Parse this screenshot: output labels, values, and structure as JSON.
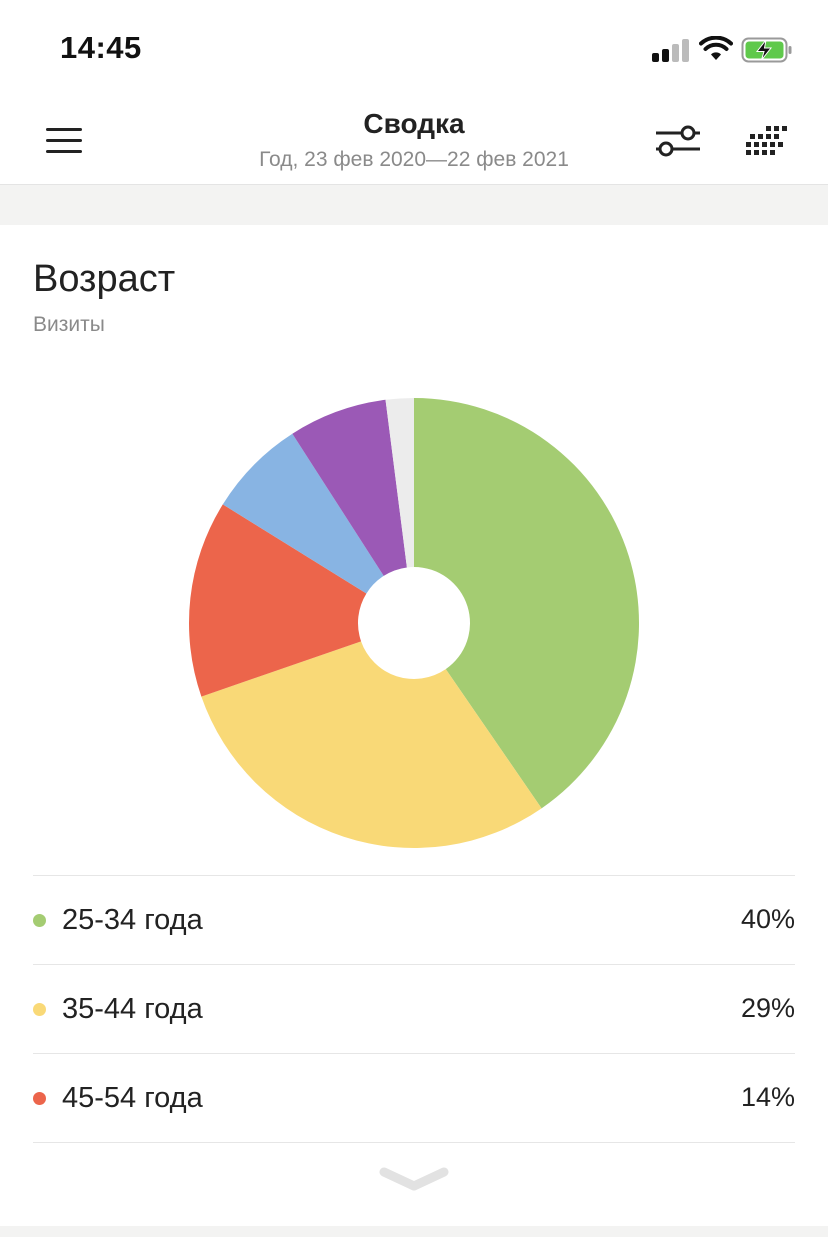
{
  "status_bar": {
    "time": "14:45"
  },
  "header": {
    "title": "Сводка",
    "subtitle": "Год, 23 фев 2020—22 фев 2021"
  },
  "card": {
    "title": "Возраст",
    "subtitle": "Визиты"
  },
  "chart_data": {
    "type": "pie",
    "categories": [
      "25-34 года",
      "35-44 года",
      "45-54 года",
      "",
      "",
      ""
    ],
    "values": [
      40,
      29,
      14,
      7,
      7,
      2
    ],
    "colors": [
      "#a4cc72",
      "#f9d977",
      "#ec654b",
      "#88b4e3",
      "#9b59b6",
      "#ececec"
    ],
    "title": "Возраст",
    "subtitle": "Визиты"
  },
  "legend": [
    {
      "label": "25-34 года",
      "value": "40%",
      "color": "#a4cc72"
    },
    {
      "label": "35-44 года",
      "value": "29%",
      "color": "#f9d977"
    },
    {
      "label": "45-54 года",
      "value": "14%",
      "color": "#ec654b"
    }
  ],
  "icons": {
    "menu": "menu-icon",
    "filter": "filter-sliders-icon",
    "grid": "dots-grid-icon",
    "expand": "chevron-down-icon"
  }
}
